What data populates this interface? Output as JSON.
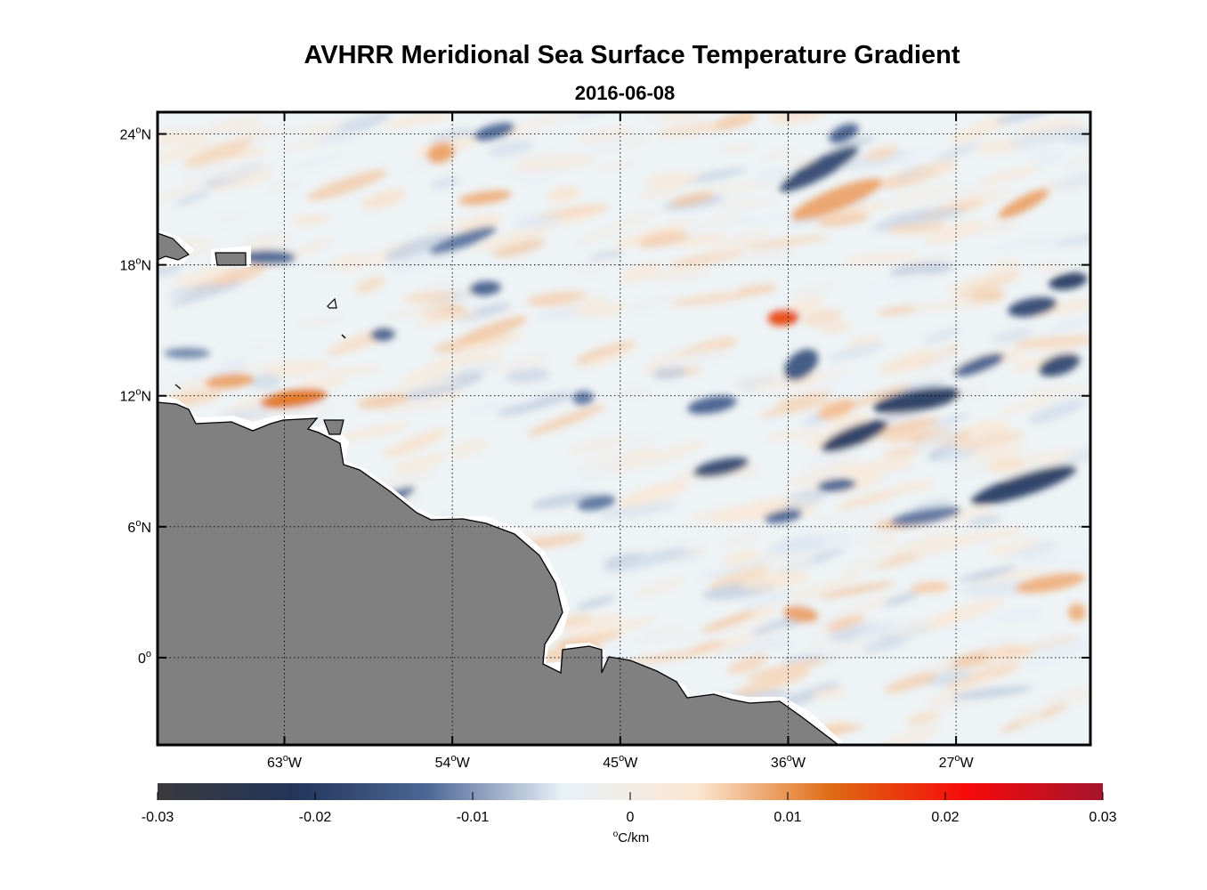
{
  "title": "AVHRR Meridional Sea Surface Temperature Gradient",
  "date": "2016-06-08",
  "map": {
    "lon_range": [
      -69.8,
      -19.8
    ],
    "lat_range": [
      -4.0,
      25.0
    ],
    "lon_ticks": [
      {
        "value": -63,
        "deg": "63",
        "suffix": "W"
      },
      {
        "value": -54,
        "deg": "54",
        "suffix": "W"
      },
      {
        "value": -45,
        "deg": "45",
        "suffix": "W"
      },
      {
        "value": -36,
        "deg": "36",
        "suffix": "W"
      },
      {
        "value": -27,
        "deg": "27",
        "suffix": "W"
      }
    ],
    "lat_ticks": [
      {
        "value": 24,
        "deg": "24",
        "suffix": "N"
      },
      {
        "value": 18,
        "deg": "18",
        "suffix": "N"
      },
      {
        "value": 12,
        "deg": "12",
        "suffix": "N"
      },
      {
        "value": 6,
        "deg": "6",
        "suffix": "N"
      },
      {
        "value": 0,
        "deg": "0",
        "suffix": ""
      }
    ],
    "grid": "dotted",
    "land_color": "#808080"
  },
  "colorbar": {
    "ticks": [
      "-0.03",
      "-0.02",
      "-0.01",
      "0",
      "0.01",
      "0.02",
      "0.03"
    ],
    "range": [
      -0.03,
      0.03
    ],
    "unit_degree": "o",
    "unit": "C/km",
    "stops": [
      "#3a3a3d",
      "#223559",
      "#4d6796",
      "#e9f1f8",
      "#fbe6d1",
      "#de6a12",
      "#f60a0a",
      "#a6142e"
    ]
  }
}
